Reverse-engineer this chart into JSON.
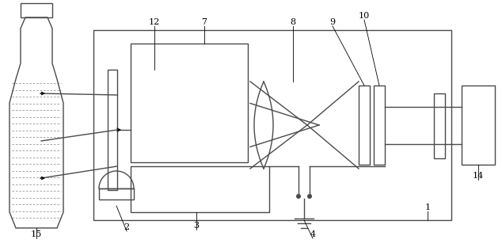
{
  "bg_color": "#ffffff",
  "line_color": "#4a4a4a",
  "fig_width": 6.34,
  "fig_height": 3.12,
  "dpi": 100
}
